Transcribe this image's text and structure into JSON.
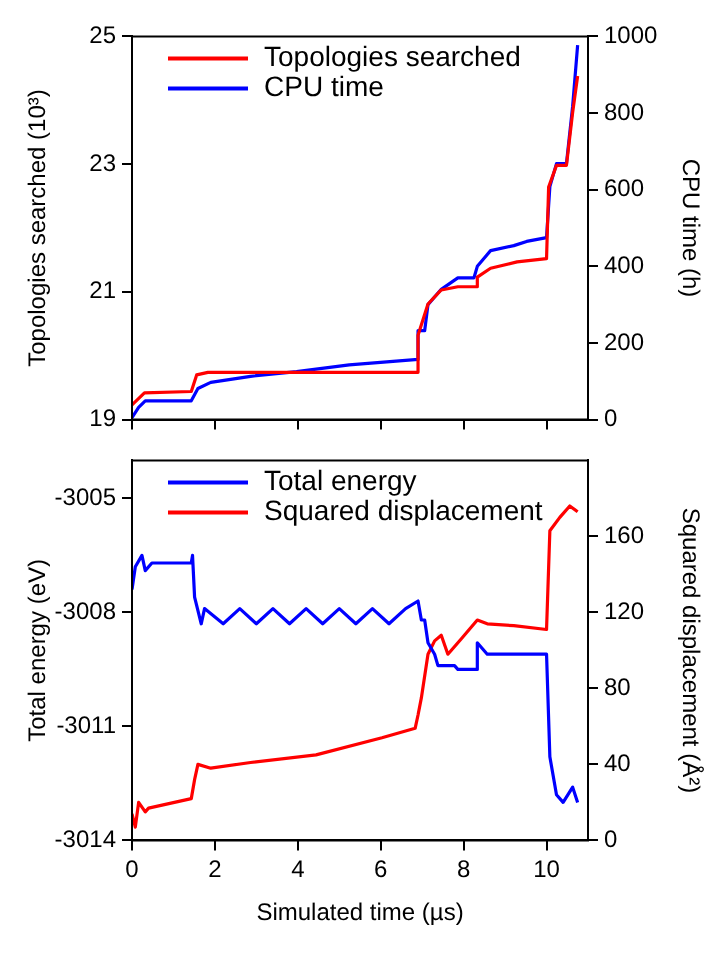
{
  "chart_data": [
    {
      "type": "line",
      "ylabel": "Topologies searched (10³)",
      "y2label": "CPU time (h)",
      "xlim": [
        0,
        11
      ],
      "xticks": [
        0,
        2,
        4,
        6,
        8,
        10
      ],
      "ylim": [
        19,
        25
      ],
      "yticks": [
        19,
        21,
        23,
        25
      ],
      "y2lim": [
        0,
        1000
      ],
      "y2ticks": [
        0,
        200,
        400,
        600,
        800,
        1000
      ],
      "tick_labels": "y",
      "legend": "top left",
      "marker": "none",
      "line_style": "solid",
      "grid": false,
      "series": [
        {
          "name": "Topologies searched",
          "color": "#ff0000",
          "x": [
            0,
            0.3,
            1.43,
            1.56,
            1.83,
            6.9,
            6.9,
            7.14,
            7.46,
            7.86,
            8.33,
            8.33,
            8.65,
            9.29,
            10.0,
            10.05,
            10.24,
            10.48,
            10.63,
            10.75
          ],
          "values": [
            19.23,
            19.42,
            19.44,
            19.7,
            19.74,
            19.74,
            20.32,
            20.81,
            21.03,
            21.08,
            21.08,
            21.23,
            21.37,
            21.47,
            21.52,
            22.64,
            22.98,
            22.98,
            23.81,
            24.38
          ]
        },
        {
          "name": "CPU time",
          "color": "#0000ff",
          "axis": "y2",
          "x": [
            0,
            0.16,
            0.32,
            1.43,
            1.59,
            1.9,
            2.86,
            3.97,
            5.24,
            6.9,
            6.9,
            7.06,
            7.14,
            7.46,
            7.86,
            8.25,
            8.33,
            8.65,
            9.21,
            9.52,
            10.0,
            10.08,
            10.24,
            10.48,
            10.63,
            10.75
          ],
          "values": [
            5,
            32,
            49,
            49,
            81,
            97,
            113,
            125,
            143,
            157,
            232,
            232,
            300,
            340,
            370,
            370,
            400,
            441,
            454,
            465,
            475,
            608,
            668,
            668,
            818,
            977
          ]
        }
      ]
    },
    {
      "type": "line",
      "xlabel": "Simulated time (µs)",
      "ylabel": "Total energy (eV)",
      "y2label": "Squared displacement (Å²)",
      "xlim": [
        0,
        11
      ],
      "xticks": [
        0,
        2,
        4,
        6,
        8,
        10
      ],
      "ylim": [
        -3014,
        -3004
      ],
      "yticks": [
        -3014,
        -3011,
        -3008,
        -3005
      ],
      "y2lim": [
        0,
        200
      ],
      "y2ticks": [
        0,
        40,
        80,
        120,
        160
      ],
      "legend": "top",
      "marker": "none",
      "line_style": "solid",
      "grid": false,
      "series": [
        {
          "name": "Total energy",
          "color": "#0000ff",
          "x": [
            0,
            0.08,
            0.24,
            0.32,
            0.48,
            1.43,
            1.46,
            1.51,
            1.67,
            1.75,
            2.2,
            2.6,
            3.0,
            3.4,
            3.8,
            4.2,
            4.6,
            5.0,
            5.4,
            5.8,
            6.2,
            6.6,
            6.9,
            6.98,
            7.06,
            7.14,
            7.3,
            7.38,
            7.78,
            7.86,
            8.33,
            8.33,
            8.57,
            9.21,
            10.0,
            10.08,
            10.24,
            10.4,
            10.63,
            10.75
          ],
          "values": [
            -3007.4,
            -3006.8,
            -3006.5,
            -3006.9,
            -3006.7,
            -3006.7,
            -3006.5,
            -3007.6,
            -3008.3,
            -3007.9,
            -3008.3,
            -3007.9,
            -3008.3,
            -3007.9,
            -3008.3,
            -3007.9,
            -3008.3,
            -3007.9,
            -3008.3,
            -3007.9,
            -3008.3,
            -3007.9,
            -3007.7,
            -3008.2,
            -3008.2,
            -3008.8,
            -3009.1,
            -3009.4,
            -3009.4,
            -3009.5,
            -3009.5,
            -3008.8,
            -3009.1,
            -3009.1,
            -3009.1,
            -3011.8,
            -3012.8,
            -3013.0,
            -3012.6,
            -3013.0
          ]
        },
        {
          "name": "Squared displacement",
          "color": "#ff0000",
          "axis": "y2",
          "x": [
            0,
            0.08,
            0.16,
            0.32,
            0.4,
            1.43,
            1.51,
            1.59,
            1.9,
            2.86,
            4.44,
            6.03,
            6.83,
            6.9,
            6.98,
            7.14,
            7.3,
            7.46,
            7.62,
            7.94,
            8.33,
            8.57,
            9.21,
            10.0,
            10.08,
            10.32,
            10.56,
            10.75
          ],
          "values": [
            14,
            7,
            20,
            15,
            17,
            22,
            32,
            40,
            38,
            41,
            45,
            54,
            59,
            66,
            75,
            98,
            105,
            108,
            98,
            106,
            116,
            114,
            113,
            111,
            163,
            170,
            176,
            173
          ]
        }
      ]
    }
  ]
}
